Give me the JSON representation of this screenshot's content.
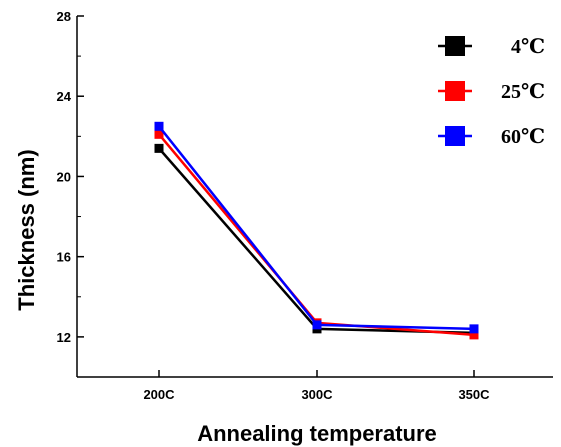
{
  "chart_data": {
    "type": "line",
    "title": "",
    "xlabel": "Annealing temperature",
    "ylabel": "Thickness (nm)",
    "categories": [
      "200C",
      "300C",
      "350C"
    ],
    "ylim": [
      10,
      28
    ],
    "yticks": [
      12,
      16,
      20,
      24,
      28
    ],
    "grid": false,
    "legend_position": "top-right",
    "series": [
      {
        "name": "4℃",
        "color": "#000000",
        "values": [
          21.4,
          12.4,
          12.2
        ]
      },
      {
        "name": "25℃",
        "color": "#ff0000",
        "values": [
          22.1,
          12.7,
          12.1
        ]
      },
      {
        "name": "60℃",
        "color": "#0000ff",
        "values": [
          22.5,
          12.6,
          12.4
        ]
      }
    ]
  }
}
